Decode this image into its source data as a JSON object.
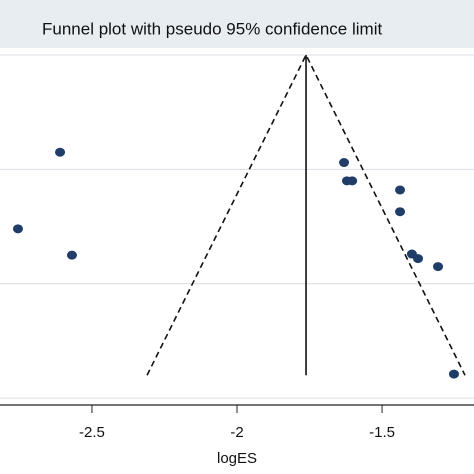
{
  "chart_data": {
    "type": "scatter",
    "title": "Funnel plot with pseudo 95% confidence limit",
    "x_label": "logES",
    "xlim": [
      -2.817,
      -1.183
    ],
    "xticks": [
      -2.5,
      -2,
      -1.5
    ],
    "ylim": [
      0,
      0.306
    ],
    "yticks": [
      0,
      0.1,
      0.2,
      0.3
    ],
    "y_inverted": true,
    "grid": true,
    "color": "#1f3d66",
    "x": [
      -2.61,
      -2.755,
      -2.569,
      -1.631,
      -1.621,
      -1.603,
      -1.438,
      -1.438,
      -1.397,
      -1.376,
      -1.307,
      -1.252
    ],
    "y": [
      0.085,
      0.152,
      0.175,
      0.094,
      0.11,
      0.11,
      0.118,
      0.137,
      0.174,
      0.178,
      0.185,
      0.279
    ],
    "lines": [
      {
        "x": [
          -2.31,
          -1.762,
          -1.214
        ],
        "y": [
          0.28,
          0,
          0.28
        ],
        "dashed": true
      },
      {
        "x": [
          -1.762,
          -1.762
        ],
        "y": [
          0,
          0.28
        ],
        "dashed": false
      }
    ]
  }
}
